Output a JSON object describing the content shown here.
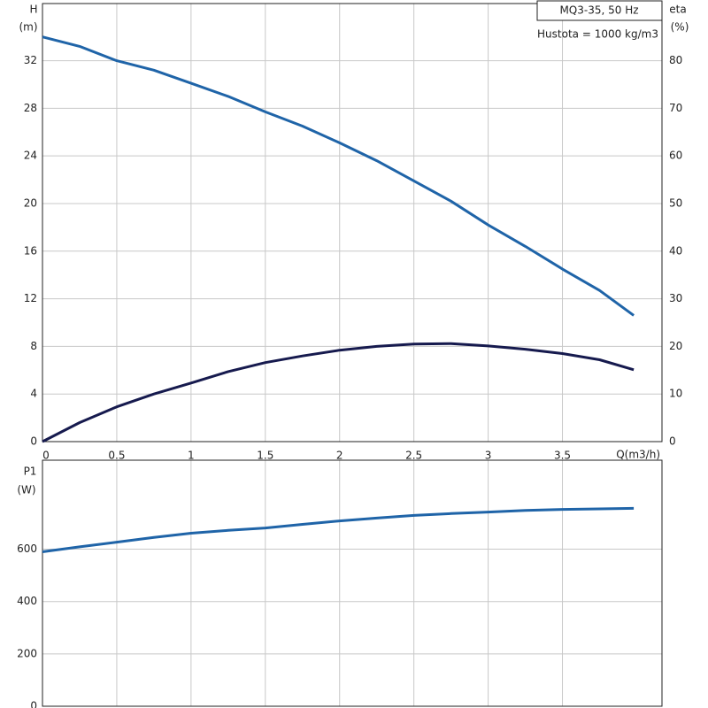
{
  "chart_data": [
    {
      "type": "line",
      "title": "MQ3-35, 50 Hz",
      "subtitle": "Hustota = 1000 kg/m3",
      "ylabel": "H",
      "ylabel_unit": "(m)",
      "y2label": "eta",
      "y2label_unit": "(%)",
      "xlabel": "Q(m3/h)",
      "x": [
        0,
        0.25,
        0.5,
        0.75,
        1,
        1.25,
        1.5,
        1.75,
        2,
        2.25,
        2.5,
        2.75,
        3,
        3.25,
        3.5,
        3.75,
        3.98
      ],
      "series": [
        {
          "color": "#1f64a8",
          "values": [
            34.0,
            33.2,
            32.0,
            31.2,
            30.1,
            29.0,
            27.7,
            26.5,
            25.1,
            23.6,
            21.9,
            20.2,
            18.2,
            16.4,
            14.5,
            12.7,
            10.6
          ]
        },
        {
          "color": "#161a4e",
          "axis": "y2",
          "values": [
            0,
            4.0,
            7.3,
            10.0,
            12.3,
            14.7,
            16.6,
            18.0,
            19.2,
            20.0,
            20.5,
            20.6,
            20.1,
            19.4,
            18.5,
            17.2,
            15.1
          ]
        }
      ],
      "xlim": [
        0,
        4.17
      ],
      "xticks": [
        0,
        0.5,
        1,
        1.5,
        2,
        2.5,
        3,
        3.5
      ],
      "ylim": [
        0,
        36.8
      ],
      "yticks": [
        0,
        4,
        8,
        12,
        16,
        20,
        24,
        28,
        32
      ],
      "y2lim": [
        0,
        92
      ],
      "y2ticks": [
        0,
        10,
        20,
        30,
        40,
        50,
        60,
        70,
        80
      ],
      "grid": true
    },
    {
      "type": "line",
      "ylabel": "P1",
      "ylabel_unit": "(W)",
      "x": [
        0,
        0.25,
        0.5,
        0.75,
        1,
        1.25,
        1.5,
        1.75,
        2,
        2.25,
        2.5,
        2.75,
        3,
        3.25,
        3.5,
        3.75,
        3.98
      ],
      "series": [
        {
          "color": "#1f64a8",
          "values": [
            590,
            609,
            627,
            645,
            661,
            672,
            681,
            695,
            708,
            719,
            729,
            736,
            742,
            748,
            752,
            754,
            756
          ]
        }
      ],
      "xlim": [
        0,
        4.17
      ],
      "ylim": [
        0,
        940
      ],
      "yticks": [
        0,
        200,
        400,
        600
      ],
      "grid": true
    }
  ]
}
